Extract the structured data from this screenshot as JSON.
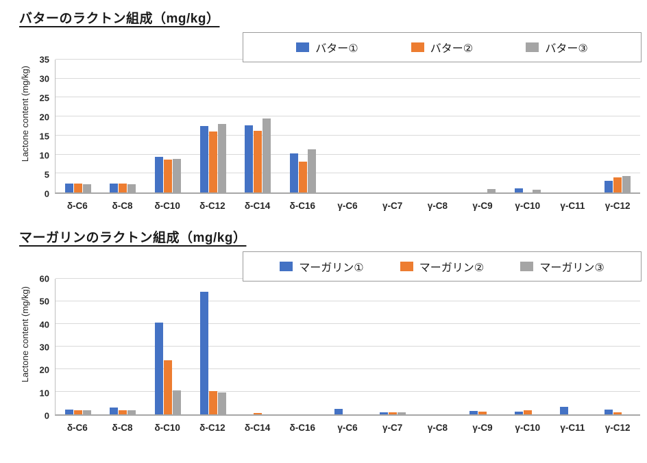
{
  "accent_colors": {
    "series1": "#4472C4",
    "series2": "#ED7D31",
    "series3": "#A5A5A5"
  },
  "chart_data": [
    {
      "type": "bar",
      "title": "バターのラクトン組成（mg/kg）",
      "ylabel": "Lactone content (mg/kg)",
      "ylim": [
        0,
        35
      ],
      "ytick": 5,
      "grid": true,
      "legend_position": "top-right-overlay",
      "categories": [
        "δ-C6",
        "δ-C8",
        "δ-C10",
        "δ-C12",
        "δ-C14",
        "δ-C16",
        "γ-C6",
        "γ-C7",
        "γ-C8",
        "γ-C9",
        "γ-C10",
        "γ-C11",
        "γ-C12"
      ],
      "series": [
        {
          "name": "バター①",
          "color": "#4472C4",
          "values": [
            2.3,
            2.4,
            9.4,
            17.5,
            17.7,
            10.2,
            0,
            0,
            0,
            0,
            1.0,
            0,
            3.0
          ]
        },
        {
          "name": "バター②",
          "color": "#ED7D31",
          "values": [
            2.3,
            2.4,
            8.6,
            16.0,
            16.3,
            8.1,
            0,
            0,
            0,
            0,
            0,
            0,
            3.9
          ]
        },
        {
          "name": "バター③",
          "color": "#A5A5A5",
          "values": [
            2.1,
            2.2,
            8.9,
            18.0,
            19.4,
            11.4,
            0,
            0,
            0,
            0.9,
            0.8,
            0,
            4.3
          ]
        }
      ]
    },
    {
      "type": "bar",
      "title": "マーガリンのラクトン組成（mg/kg）",
      "ylabel": "Lactone content (mg/kg)",
      "ylim": [
        0,
        60
      ],
      "ytick": 10,
      "grid": true,
      "legend_position": "top-right-overlay",
      "categories": [
        "δ-C6",
        "δ-C8",
        "δ-C10",
        "δ-C12",
        "δ-C14",
        "δ-C16",
        "γ-C6",
        "γ-C7",
        "γ-C8",
        "γ-C9",
        "γ-C10",
        "γ-C11",
        "γ-C12"
      ],
      "series": [
        {
          "name": "マーガリン①",
          "color": "#4472C4",
          "values": [
            2.0,
            3.0,
            40.5,
            54.2,
            0,
            0,
            2.5,
            0.8,
            0,
            1.4,
            1.2,
            3.2,
            2.2
          ]
        },
        {
          "name": "マーガリン②",
          "color": "#ED7D31",
          "values": [
            1.8,
            1.8,
            24.0,
            10.3,
            0.5,
            0,
            0,
            0.8,
            0,
            1.2,
            1.8,
            0,
            0.8
          ]
        },
        {
          "name": "マーガリン③",
          "color": "#A5A5A5",
          "values": [
            1.8,
            1.8,
            10.5,
            9.7,
            0,
            0,
            0,
            0.8,
            0,
            0,
            0,
            0,
            0
          ]
        }
      ]
    }
  ]
}
